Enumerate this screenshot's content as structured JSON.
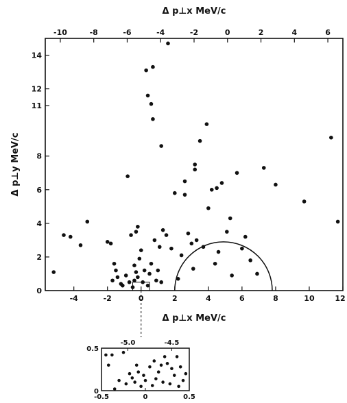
{
  "chart_data": [
    {
      "type": "scatter",
      "title": "",
      "xlabel": "Δ p⊥x  MeV/c",
      "ylabel": "Δ p⊥y  MeV/c",
      "top_xlabel": "Δ p⊥x  MeV/c",
      "xlim": [
        -5.7,
        12
      ],
      "ylim": [
        0,
        15
      ],
      "top_xlim": [
        -10.9,
        6.9
      ],
      "xticks": [
        "-4",
        "-2",
        "0",
        "2",
        "4",
        "6",
        "8",
        "10",
        "12"
      ],
      "yticks": [
        "0",
        "2",
        "4",
        "6",
        "8",
        "11",
        "12",
        "14"
      ],
      "top_xticks": [
        "-10",
        "-8",
        "-6",
        "-4",
        "-2",
        "0",
        "2",
        "4",
        "6"
      ],
      "semicircle": {
        "center_x": 4.9,
        "radius": 2.9
      },
      "inset_box": {
        "x": [
          -0.5,
          0.5
        ],
        "y": [
          0,
          0.5
        ]
      },
      "points": [
        [
          -5.2,
          1.1
        ],
        [
          -4.6,
          3.3
        ],
        [
          -4.2,
          3.2
        ],
        [
          -3.6,
          2.7
        ],
        [
          -3.2,
          4.1
        ],
        [
          -2.0,
          2.9
        ],
        [
          -1.8,
          2.8
        ],
        [
          -1.7,
          0.6
        ],
        [
          -1.6,
          1.6
        ],
        [
          -1.5,
          1.2
        ],
        [
          -1.4,
          0.8
        ],
        [
          -1.2,
          0.4
        ],
        [
          -1.1,
          0.3
        ],
        [
          -0.9,
          0.9
        ],
        [
          -0.8,
          6.8
        ],
        [
          -0.7,
          0.5
        ],
        [
          -0.6,
          3.3
        ],
        [
          -0.5,
          0.2
        ],
        [
          -0.4,
          1.5
        ],
        [
          -0.4,
          0.6
        ],
        [
          -0.3,
          1.1
        ],
        [
          -0.3,
          3.5
        ],
        [
          -0.2,
          0.8
        ],
        [
          -0.2,
          3.8
        ],
        [
          -0.1,
          1.9
        ],
        [
          0.0,
          2.4
        ],
        [
          0.1,
          0.5
        ],
        [
          0.2,
          1.2
        ],
        [
          0.3,
          13.1
        ],
        [
          0.4,
          0.3
        ],
        [
          0.5,
          1.0
        ],
        [
          0.6,
          1.6
        ],
        [
          0.7,
          13.3
        ],
        [
          0.8,
          3.0
        ],
        [
          0.9,
          0.6
        ],
        [
          1.0,
          1.2
        ],
        [
          1.1,
          2.6
        ],
        [
          1.2,
          0.5
        ],
        [
          1.3,
          3.6
        ],
        [
          1.5,
          3.3
        ],
        [
          1.8,
          2.5
        ],
        [
          2.0,
          5.8
        ],
        [
          2.2,
          0.7
        ],
        [
          2.4,
          2.1
        ],
        [
          2.6,
          5.7
        ],
        [
          2.8,
          3.4
        ],
        [
          3.0,
          2.8
        ],
        [
          3.1,
          1.3
        ],
        [
          3.2,
          7.2
        ],
        [
          3.3,
          3.0
        ],
        [
          3.5,
          8.9
        ],
        [
          3.7,
          2.6
        ],
        [
          3.9,
          9.9
        ],
        [
          4.0,
          4.9
        ],
        [
          4.2,
          6.0
        ],
        [
          4.4,
          1.6
        ],
        [
          4.6,
          2.3
        ],
        [
          4.8,
          6.4
        ],
        [
          5.1,
          3.5
        ],
        [
          5.4,
          0.9
        ],
        [
          5.7,
          7.0
        ],
        [
          6.0,
          2.5
        ],
        [
          6.2,
          3.2
        ],
        [
          6.5,
          1.8
        ],
        [
          6.9,
          1.0
        ],
        [
          7.3,
          7.3
        ],
        [
          8.0,
          6.3
        ],
        [
          9.7,
          5.3
        ],
        [
          11.3,
          9.1
        ],
        [
          11.7,
          4.1
        ],
        [
          0.4,
          11.6
        ],
        [
          0.6,
          11.1
        ],
        [
          0.7,
          10.2
        ],
        [
          1.2,
          8.6
        ],
        [
          3.2,
          7.5
        ],
        [
          2.6,
          6.5
        ],
        [
          4.5,
          6.1
        ],
        [
          5.3,
          4.3
        ],
        [
          1.6,
          14.7
        ]
      ]
    },
    {
      "type": "scatter",
      "title": "",
      "xlim": [
        -0.5,
        0.5
      ],
      "ylim": [
        0,
        0.5
      ],
      "top_xlim": [
        -5.3,
        -4.3
      ],
      "xticks": [
        "-0.5",
        "0",
        "0.5"
      ],
      "yticks": [
        "0",
        "0.5"
      ],
      "top_xticks": [
        "-5.0",
        "-4.5"
      ],
      "points": [
        [
          -0.45,
          0.42
        ],
        [
          -0.38,
          0.42
        ],
        [
          -0.3,
          0.12
        ],
        [
          -0.25,
          0.45
        ],
        [
          -0.22,
          0.08
        ],
        [
          -0.18,
          0.2
        ],
        [
          -0.15,
          0.15
        ],
        [
          -0.12,
          0.1
        ],
        [
          -0.1,
          0.3
        ],
        [
          -0.08,
          0.22
        ],
        [
          -0.05,
          0.05
        ],
        [
          -0.02,
          0.18
        ],
        [
          0.0,
          0.12
        ],
        [
          0.05,
          0.28
        ],
        [
          0.08,
          0.06
        ],
        [
          0.1,
          0.35
        ],
        [
          0.12,
          0.14
        ],
        [
          0.15,
          0.22
        ],
        [
          0.18,
          0.3
        ],
        [
          0.2,
          0.1
        ],
        [
          0.22,
          0.4
        ],
        [
          0.25,
          0.32
        ],
        [
          0.28,
          0.08
        ],
        [
          0.3,
          0.26
        ],
        [
          0.33,
          0.18
        ],
        [
          0.36,
          0.4
        ],
        [
          0.4,
          0.28
        ],
        [
          0.43,
          0.12
        ],
        [
          0.46,
          0.2
        ],
        [
          -0.42,
          0.3
        ],
        [
          -0.35,
          0.02
        ],
        [
          0.38,
          0.05
        ]
      ]
    }
  ]
}
